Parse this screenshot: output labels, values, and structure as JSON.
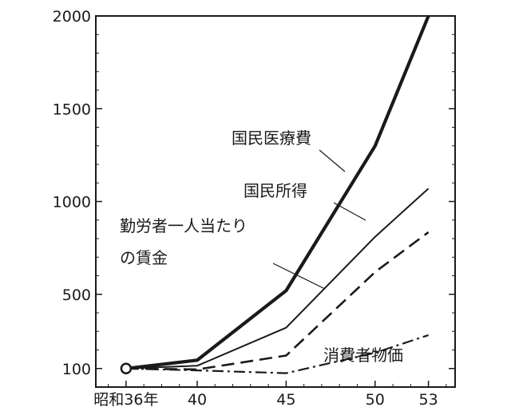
{
  "chart_data": {
    "type": "line",
    "x": [
      36,
      40,
      45,
      50,
      53
    ],
    "x_tick_labels": [
      "昭和36年",
      "40",
      "45",
      "50",
      "53"
    ],
    "y_ticks": [
      100,
      500,
      1000,
      1500,
      2000
    ],
    "ylim": [
      0,
      2000
    ],
    "xlim": [
      34.3,
      54.5
    ],
    "grid": false,
    "series": [
      {
        "name": "国民医療費",
        "style": "thick-solid",
        "values": [
          100,
          145,
          520,
          1300,
          2000
        ]
      },
      {
        "name": "国民所得",
        "style": "solid",
        "values": [
          100,
          115,
          320,
          810,
          1070
        ]
      },
      {
        "name": "勤労者一人当たりの賃金",
        "style": "dashed",
        "values": [
          100,
          95,
          170,
          620,
          835
        ]
      },
      {
        "name": "消費者物価",
        "style": "dash-dot",
        "values": [
          100,
          90,
          75,
          185,
          280
        ]
      }
    ],
    "labels": {
      "medical": "国民医療費",
      "income": "国民所得",
      "wage_line1": "勤労者一人当たり",
      "wage_line2": "の賃金",
      "cpi": "消費者物価"
    },
    "colors": {
      "ink": "#1a1a1a",
      "background": "#ffffff"
    }
  }
}
